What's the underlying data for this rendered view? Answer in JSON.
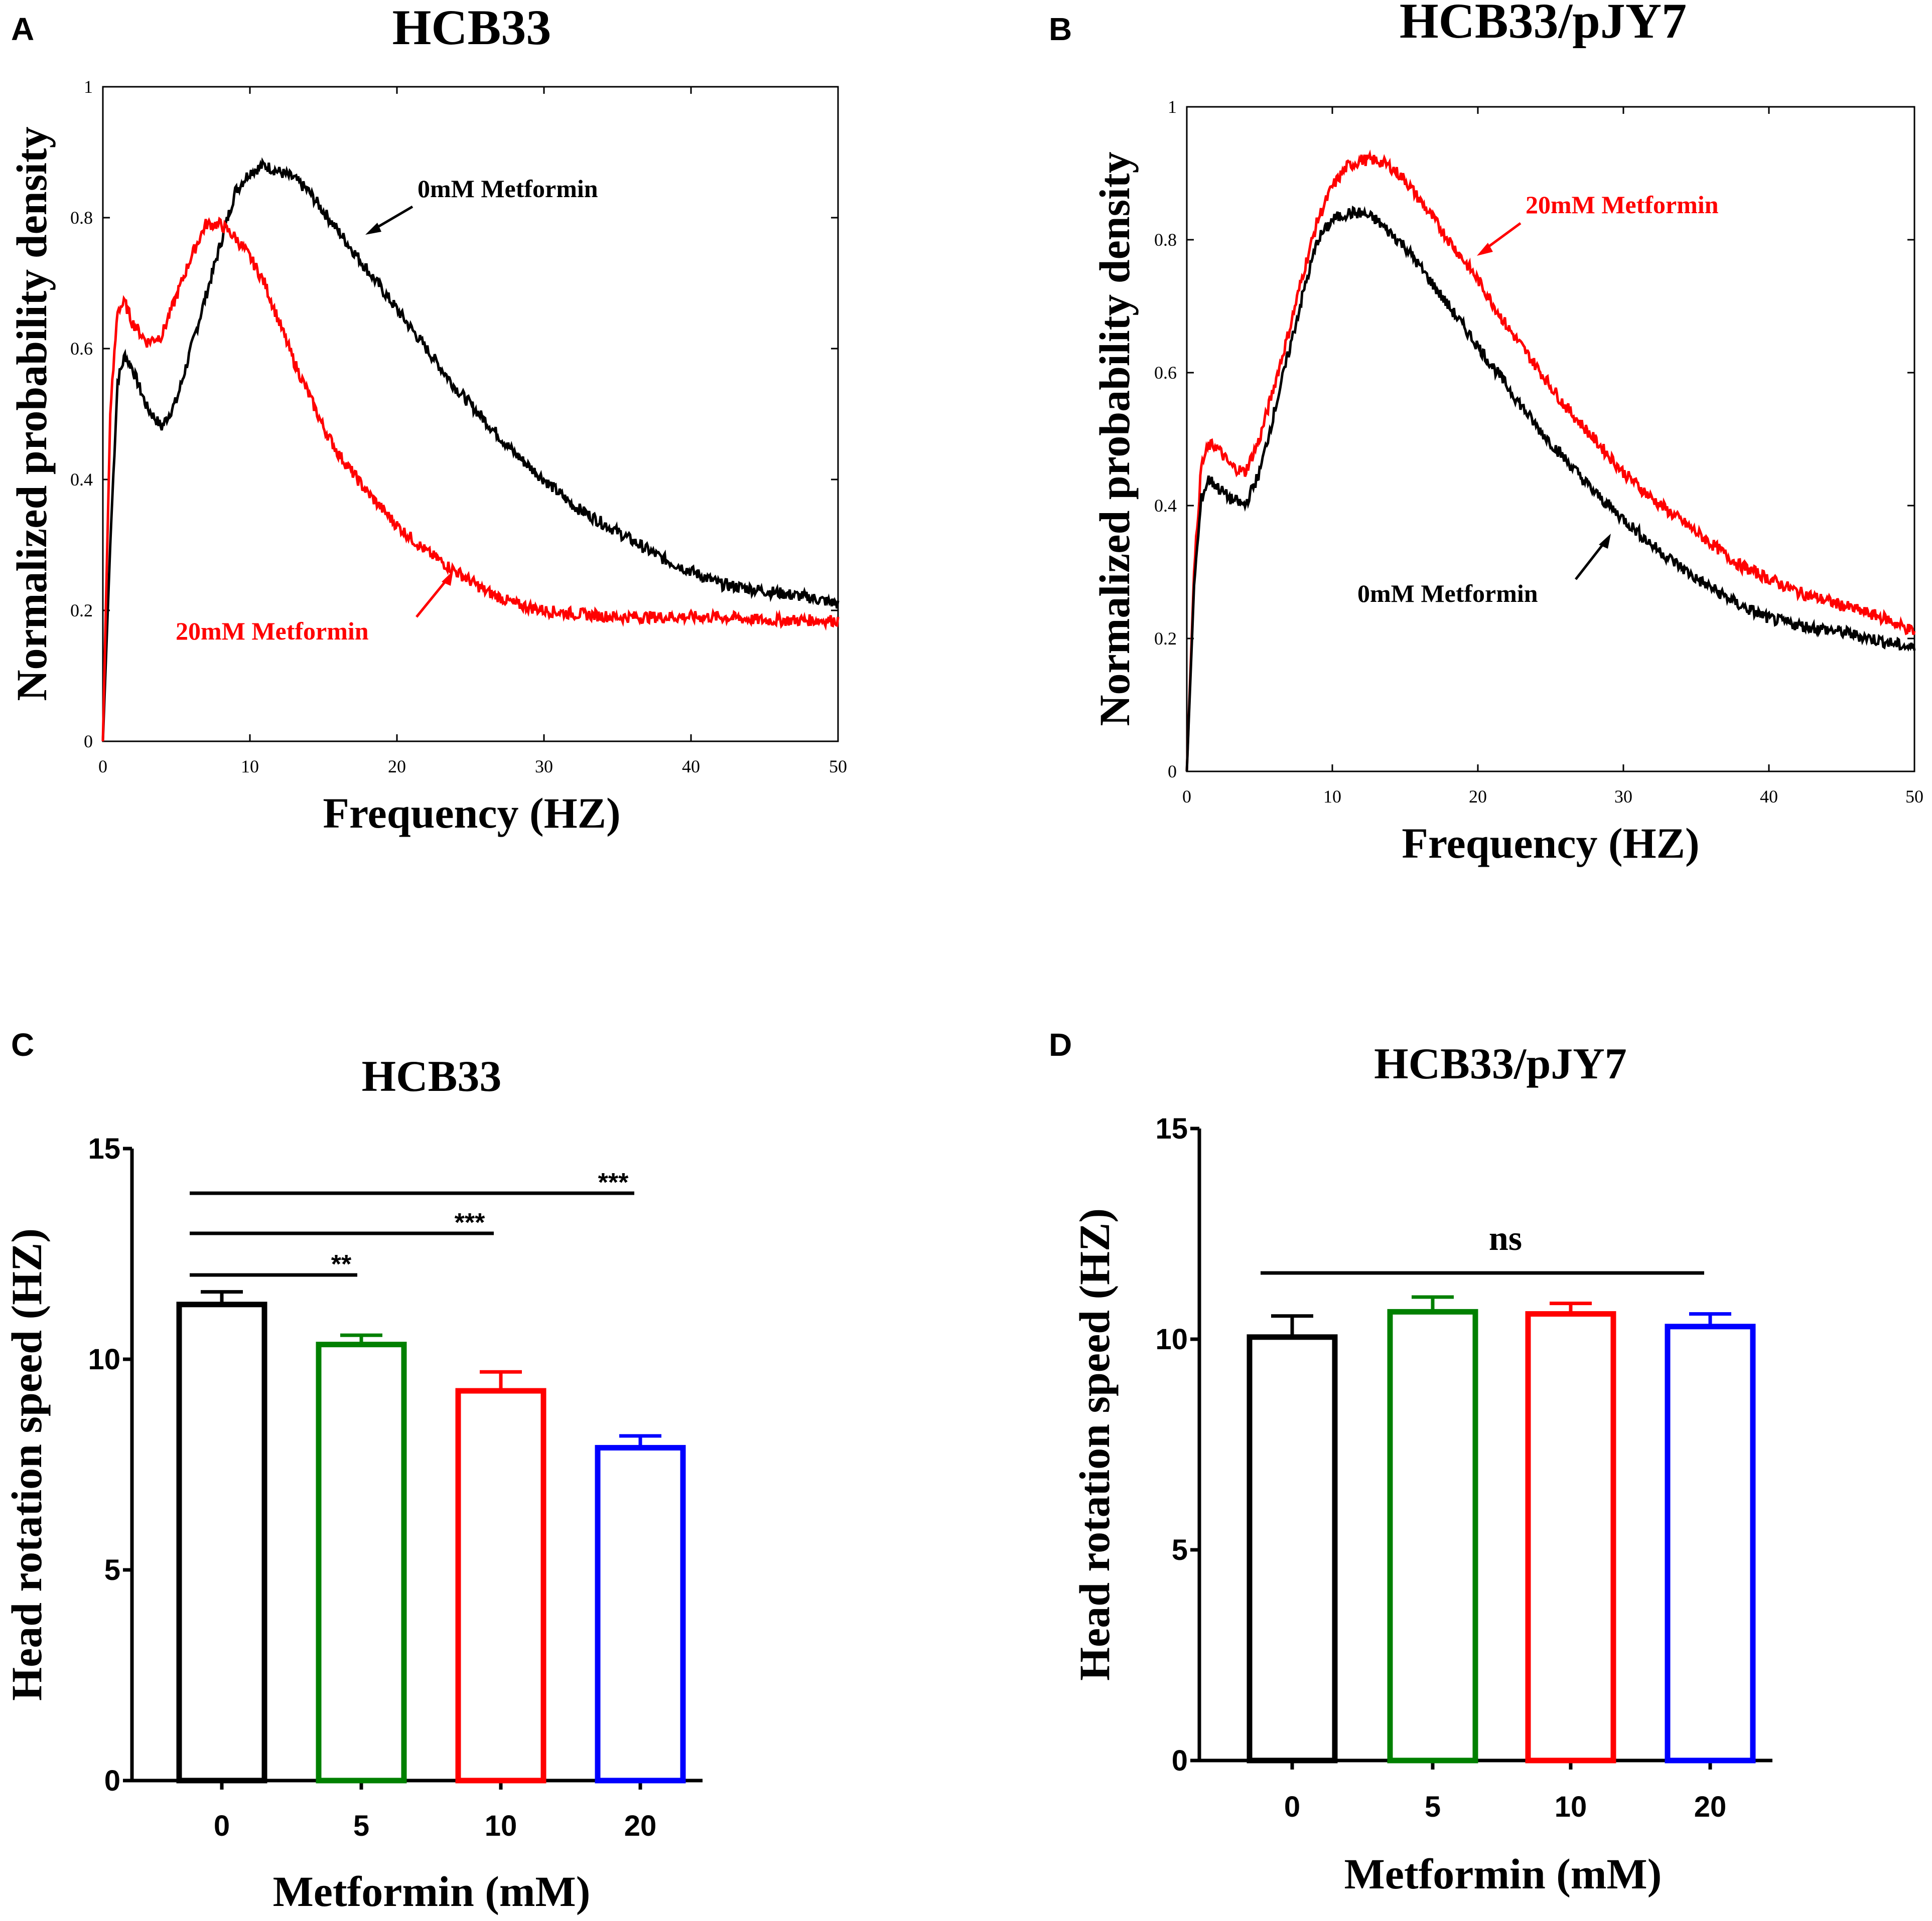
{
  "colors": {
    "black": "#000000",
    "red": "#ff0000",
    "green": "#008000",
    "blue": "#0000ff"
  },
  "chart_data": [
    {
      "panel": "A",
      "type": "line",
      "title": "HCB33",
      "xlabel": "Frequency (HZ)",
      "ylabel": "Normalized probability density",
      "xlim": [
        0,
        50
      ],
      "ylim": [
        0,
        1
      ],
      "xticks": [
        "0",
        "10",
        "20",
        "30",
        "40",
        "50"
      ],
      "yticks": [
        "0",
        "0.2",
        "0.4",
        "0.6",
        "0.8",
        "1"
      ],
      "series": [
        {
          "name": "0mM Metformin",
          "color": "#000000",
          "x": [
            0,
            0.5,
            1,
            1.5,
            2,
            3,
            4,
            5,
            6,
            7,
            8,
            9,
            10,
            11,
            12,
            13,
            14,
            15,
            16,
            18,
            20,
            22,
            24,
            26,
            28,
            30,
            32,
            35,
            38,
            40,
            42,
            45,
            48,
            50
          ],
          "y": [
            0.0,
            0.3,
            0.55,
            0.59,
            0.57,
            0.51,
            0.48,
            0.52,
            0.6,
            0.68,
            0.76,
            0.84,
            0.87,
            0.88,
            0.87,
            0.86,
            0.84,
            0.81,
            0.78,
            0.72,
            0.66,
            0.6,
            0.54,
            0.49,
            0.44,
            0.4,
            0.36,
            0.32,
            0.28,
            0.26,
            0.24,
            0.23,
            0.22,
            0.21
          ]
        },
        {
          "name": "20mM Metformin",
          "color": "#ff0000",
          "x": [
            0,
            0.5,
            1,
            1.5,
            2,
            3,
            4,
            5,
            6,
            7,
            8,
            9,
            10,
            11,
            12,
            13,
            14,
            15,
            16,
            18,
            20,
            22,
            24,
            26,
            28,
            30,
            32,
            35,
            38,
            40,
            42,
            45,
            48,
            50
          ],
          "y": [
            0.0,
            0.5,
            0.66,
            0.67,
            0.64,
            0.61,
            0.62,
            0.68,
            0.74,
            0.79,
            0.79,
            0.77,
            0.74,
            0.7,
            0.64,
            0.58,
            0.53,
            0.48,
            0.44,
            0.38,
            0.33,
            0.29,
            0.26,
            0.23,
            0.21,
            0.2,
            0.195,
            0.19,
            0.19,
            0.19,
            0.19,
            0.185,
            0.185,
            0.185
          ]
        }
      ],
      "annotations": [
        {
          "text": "0mM Metformin",
          "color": "#000000"
        },
        {
          "text": "20mM Metformin",
          "color": "#ff0000"
        }
      ]
    },
    {
      "panel": "B",
      "type": "line",
      "title": "HCB33/pJY7",
      "xlabel": "Frequency (HZ)",
      "ylabel": "Normalized probability density",
      "xlim": [
        0,
        50
      ],
      "ylim": [
        0,
        1
      ],
      "xticks": [
        "0",
        "10",
        "20",
        "30",
        "40",
        "50"
      ],
      "yticks": [
        "0",
        "0.2",
        "0.4",
        "0.6",
        "0.8",
        "1"
      ],
      "series": [
        {
          "name": "20mM Metformin",
          "color": "#ff0000",
          "x": [
            0,
            0.5,
            1,
            1.5,
            2,
            3,
            4,
            5,
            6,
            7,
            8,
            9,
            10,
            11,
            12,
            13,
            14,
            15,
            16,
            18,
            20,
            22,
            24,
            26,
            28,
            30,
            32,
            35,
            38,
            40,
            42,
            45,
            48,
            50
          ],
          "y": [
            0.0,
            0.3,
            0.46,
            0.49,
            0.49,
            0.46,
            0.45,
            0.5,
            0.58,
            0.66,
            0.75,
            0.83,
            0.88,
            0.91,
            0.92,
            0.92,
            0.91,
            0.89,
            0.86,
            0.8,
            0.74,
            0.67,
            0.61,
            0.55,
            0.5,
            0.45,
            0.41,
            0.36,
            0.31,
            0.29,
            0.27,
            0.25,
            0.23,
            0.21
          ]
        },
        {
          "name": "0mM Metformin",
          "color": "#000000",
          "x": [
            0,
            0.5,
            1,
            1.5,
            2,
            3,
            4,
            5,
            6,
            7,
            8,
            9,
            10,
            11,
            12,
            13,
            14,
            15,
            16,
            18,
            20,
            22,
            24,
            26,
            28,
            30,
            32,
            35,
            38,
            40,
            42,
            45,
            48,
            50
          ],
          "y": [
            0.0,
            0.28,
            0.41,
            0.44,
            0.43,
            0.41,
            0.4,
            0.45,
            0.54,
            0.63,
            0.72,
            0.8,
            0.83,
            0.84,
            0.84,
            0.83,
            0.81,
            0.79,
            0.76,
            0.7,
            0.64,
            0.58,
            0.52,
            0.47,
            0.42,
            0.38,
            0.34,
            0.29,
            0.25,
            0.23,
            0.22,
            0.21,
            0.195,
            0.185
          ]
        }
      ],
      "annotations": [
        {
          "text": "20mM Metformin",
          "color": "#ff0000"
        },
        {
          "text": "0mM Metformin",
          "color": "#000000"
        }
      ]
    },
    {
      "panel": "C",
      "type": "bar",
      "title": "HCB33",
      "xlabel": "Metformin (mM)",
      "ylabel": "Head rotation speed (HZ)",
      "ylim": [
        0,
        15
      ],
      "yticks": [
        "0",
        "5",
        "10",
        "15"
      ],
      "categories": [
        "0",
        "5",
        "10",
        "20"
      ],
      "values": [
        11.3,
        10.35,
        9.25,
        7.9
      ],
      "errors": [
        0.3,
        0.22,
        0.45,
        0.28
      ],
      "bar_colors": [
        "#000000",
        "#008000",
        "#ff0000",
        "#0000ff"
      ],
      "significance": [
        {
          "from": "0",
          "to": "5",
          "label": "**"
        },
        {
          "from": "0",
          "to": "10",
          "label": "***"
        },
        {
          "from": "0",
          "to": "20",
          "label": "***"
        }
      ]
    },
    {
      "panel": "D",
      "type": "bar",
      "title": "HCB33/pJY7",
      "xlabel": "Metformin (mM)",
      "ylabel": "Head rotation speed (HZ)",
      "ylim": [
        0,
        15
      ],
      "yticks": [
        "0",
        "5",
        "10",
        "15"
      ],
      "categories": [
        "0",
        "5",
        "10",
        "20"
      ],
      "values": [
        10.05,
        10.65,
        10.6,
        10.3
      ],
      "errors": [
        0.5,
        0.35,
        0.25,
        0.3
      ],
      "bar_colors": [
        "#000000",
        "#008000",
        "#ff0000",
        "#0000ff"
      ],
      "significance": [
        {
          "from": "0",
          "to": "20",
          "label": "ns"
        }
      ]
    }
  ]
}
